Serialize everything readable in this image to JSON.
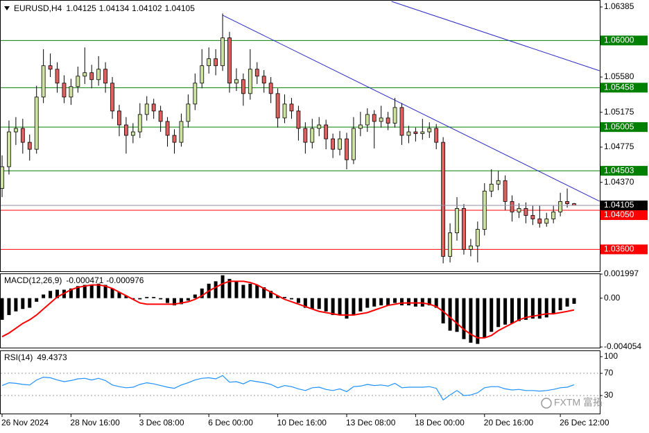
{
  "chart_data": [
    {
      "type": "candlestick",
      "symbol": "EURUSD,H4",
      "bull_color": "#cfe3a0",
      "bear_color": "#e06060",
      "candles": [
        [
          1.043,
          1.0468,
          1.042,
          1.0455
        ],
        [
          1.0455,
          1.0508,
          1.0446,
          1.0495
        ],
        [
          1.0495,
          1.0512,
          1.048,
          1.0499
        ],
        [
          1.0499,
          1.051,
          1.047,
          1.0483
        ],
        [
          1.0483,
          1.0492,
          1.0462,
          1.0475
        ],
        [
          1.0475,
          1.0548,
          1.047,
          1.0535
        ],
        [
          1.0535,
          1.059,
          1.0528,
          1.0571
        ],
        [
          1.0571,
          1.0585,
          1.0558,
          1.0567
        ],
        [
          1.0567,
          1.0575,
          1.054,
          1.0551
        ],
        [
          1.0551,
          1.056,
          1.0528,
          1.0535
        ],
        [
          1.0535,
          1.0556,
          1.0526,
          1.0547
        ],
        [
          1.0547,
          1.057,
          1.054,
          1.0559
        ],
        [
          1.0559,
          1.0592,
          1.055,
          1.0563
        ],
        [
          1.0563,
          1.0572,
          1.0545,
          1.0555
        ],
        [
          1.0555,
          1.0582,
          1.0548,
          1.0567
        ],
        [
          1.0567,
          1.0575,
          1.054,
          1.0551
        ],
        [
          1.0551,
          1.0558,
          1.051,
          1.0519
        ],
        [
          1.0519,
          1.0526,
          1.049,
          1.0503
        ],
        [
          1.0503,
          1.0512,
          1.047,
          1.0491
        ],
        [
          1.0491,
          1.0505,
          1.0482,
          1.0495
        ],
        [
          1.0495,
          1.0528,
          1.0488,
          1.0515
        ],
        [
          1.0515,
          1.0536,
          1.0508,
          1.0527
        ],
        [
          1.0527,
          1.0533,
          1.051,
          1.0519
        ],
        [
          1.0519,
          1.0525,
          1.0495,
          1.0507
        ],
        [
          1.0507,
          1.0512,
          1.0478,
          1.0491
        ],
        [
          1.0491,
          1.0498,
          1.047,
          1.0483
        ],
        [
          1.0483,
          1.0516,
          1.0478,
          1.0507
        ],
        [
          1.0507,
          1.0538,
          1.05,
          1.0527
        ],
        [
          1.0527,
          1.0562,
          1.052,
          1.0551
        ],
        [
          1.0551,
          1.059,
          1.0545,
          1.0571
        ],
        [
          1.0571,
          1.0592,
          1.0562,
          1.0579
        ],
        [
          1.0579,
          1.059,
          1.056,
          1.0571
        ],
        [
          1.0571,
          1.0631,
          1.0565,
          1.0603
        ],
        [
          1.0603,
          1.061,
          1.054,
          1.0551
        ],
        [
          1.0551,
          1.0568,
          1.0542,
          1.0555
        ],
        [
          1.0555,
          1.0562,
          1.0525,
          1.0539
        ],
        [
          1.0539,
          1.059,
          1.0532,
          1.0567
        ],
        [
          1.0567,
          1.0575,
          1.055,
          1.0559
        ],
        [
          1.0559,
          1.0566,
          1.054,
          1.0551
        ],
        [
          1.0551,
          1.0558,
          1.0528,
          1.0539
        ],
        [
          1.0539,
          1.0545,
          1.05,
          1.0511
        ],
        [
          1.0511,
          1.0538,
          1.0505,
          1.0527
        ],
        [
          1.0527,
          1.0534,
          1.051,
          1.0519
        ],
        [
          1.0519,
          1.0525,
          1.0485,
          1.0499
        ],
        [
          1.0499,
          1.0506,
          1.047,
          1.0483
        ],
        [
          1.0483,
          1.051,
          1.0476,
          1.0499
        ],
        [
          1.0499,
          1.0512,
          1.049,
          1.0503
        ],
        [
          1.0503,
          1.0509,
          1.0475,
          1.0487
        ],
        [
          1.0487,
          1.0493,
          1.0465,
          1.0475
        ],
        [
          1.0475,
          1.0496,
          1.0468,
          1.0487
        ],
        [
          1.0487,
          1.0494,
          1.0452,
          1.0463
        ],
        [
          1.0463,
          1.0512,
          1.0458,
          1.0499
        ],
        [
          1.0499,
          1.0518,
          1.049,
          1.0503
        ],
        [
          1.0503,
          1.0522,
          1.0495,
          1.0515
        ],
        [
          1.0515,
          1.052,
          1.0476,
          1.0507
        ],
        [
          1.0507,
          1.0525,
          1.05,
          1.0511
        ],
        [
          1.0511,
          1.0518,
          1.0497,
          1.0505
        ],
        [
          1.0505,
          1.0534,
          1.05,
          1.0523
        ],
        [
          1.0523,
          1.0528,
          1.048,
          1.0491
        ],
        [
          1.0491,
          1.0502,
          1.0482,
          1.0495
        ],
        [
          1.0495,
          1.05,
          1.0484,
          1.0493
        ],
        [
          1.0493,
          1.051,
          1.0486,
          1.0495
        ],
        [
          1.0495,
          1.0506,
          1.0488,
          1.0499
        ],
        [
          1.0499,
          1.0504,
          1.0475,
          1.0483
        ],
        [
          1.0483,
          1.0489,
          1.0344,
          1.0352
        ],
        [
          1.0352,
          1.039,
          1.0345,
          1.0379
        ],
        [
          1.0379,
          1.042,
          1.037,
          1.0407
        ],
        [
          1.0407,
          1.0412,
          1.0354,
          1.036
        ],
        [
          1.036,
          1.0372,
          1.0352,
          1.0364
        ],
        [
          1.0364,
          1.0392,
          1.0345,
          1.0383
        ],
        [
          1.0383,
          1.0436,
          1.0376,
          1.0427
        ],
        [
          1.0427,
          1.0452,
          1.042,
          1.0435
        ],
        [
          1.0435,
          1.045,
          1.0428,
          1.0439
        ],
        [
          1.0439,
          1.0445,
          1.0405,
          1.0415
        ],
        [
          1.0415,
          1.0422,
          1.0392,
          1.0403
        ],
        [
          1.0403,
          1.0413,
          1.0396,
          1.0407
        ],
        [
          1.0407,
          1.0414,
          1.039,
          1.0399
        ],
        [
          1.0399,
          1.041,
          1.0388,
          1.0395
        ],
        [
          1.0395,
          1.041,
          1.0385,
          1.039
        ],
        [
          1.039,
          1.0402,
          1.0386,
          1.0395
        ],
        [
          1.0395,
          1.041,
          1.039,
          1.0403
        ],
        [
          1.0403,
          1.0425,
          1.0398,
          1.0415
        ],
        [
          1.0415,
          1.043,
          1.0408,
          1.04125
        ],
        [
          1.04125,
          1.04134,
          1.04102,
          1.04105
        ]
      ],
      "categories": [
        "26 Nov 2024",
        null,
        null,
        null,
        null,
        null,
        null,
        null,
        null,
        null,
        "28 Nov 16:00",
        null,
        null,
        null,
        null,
        null,
        null,
        null,
        null,
        null,
        "3 Dec 08:00",
        null,
        null,
        null,
        null,
        null,
        null,
        null,
        null,
        null,
        "6 Dec 00:00",
        null,
        null,
        null,
        null,
        null,
        null,
        null,
        null,
        null,
        "10 Dec 16:00",
        null,
        null,
        null,
        null,
        null,
        null,
        null,
        null,
        null,
        "13 Dec 08:00",
        null,
        null,
        null,
        null,
        null,
        null,
        null,
        null,
        null,
        "18 Dec 00:00",
        null,
        null,
        null,
        null,
        null,
        null,
        null,
        null,
        null,
        "20 Dec 16:00",
        null,
        null,
        null,
        null,
        null,
        null,
        null,
        null,
        null,
        null,
        "26 Dec 12:00",
        null,
        null
      ],
      "ylim": [
        1.0334,
        1.06465
      ],
      "yticks": [
        1.06385,
        {
          "value": 1.0558,
          "label": "1.05580"
        },
        1.05175,
        1.04775,
        {
          "value": 1.0437,
          "label": "1.04370"
        }
      ],
      "levels": [
        {
          "value": 1.06,
          "label": "1.06000",
          "color": "#008000"
        },
        {
          "value": 1.05458,
          "label": "1.05458",
          "color": "#008000"
        },
        {
          "value": 1.05005,
          "label": "1.05005",
          "color": "#008000"
        },
        {
          "value": 1.04503,
          "label": "1.04503",
          "color": "#008000"
        },
        {
          "value": 1.0405,
          "label": "1.04050",
          "color": "#ff0000"
        },
        {
          "value": 1.036,
          "label": "1.03600",
          "color": "#ff0000"
        }
      ],
      "trendlines": [
        {
          "x": [
            56.5,
            86.7
          ],
          "y": [
            1.06449,
            1.05652
          ],
          "color": "#2828c8"
        },
        {
          "x": [
            32,
            86.7
          ],
          "y": [
            1.0629,
            1.04153
          ],
          "color": "#2828c8"
        }
      ]
    },
    {
      "type": "macd",
      "title": "MACD(12,26,9)",
      "series": [
        {
          "color": "#000000",
          "values": [
            -0.0018,
            -0.0014,
            -0.0011,
            -0.0009,
            -0.0008,
            -0.0003,
            0.0003,
            0.0006,
            0.0007,
            0.0007,
            0.0008,
            0.001,
            0.0011,
            0.0011,
            0.0012,
            0.0011,
            0.0008,
            0.0005,
            0.0002,
            -0.0001,
            -0.0001,
            0.0001,
            0.0001,
            -0.0001,
            -0.0004,
            -0.0006,
            -0.0005,
            -0.0002,
            0.0003,
            0.0008,
            0.0012,
            0.0014,
            0.0019,
            0.0016,
            0.0014,
            0.0011,
            0.0012,
            0.0011,
            0.0009,
            0.0006,
            0.0002,
            0.0001,
            -0.0001,
            -0.0004,
            -0.0008,
            -0.0009,
            -0.0009,
            -0.0011,
            -0.0014,
            -0.0014,
            -0.0017,
            -0.0014,
            -0.0011,
            -0.0008,
            -0.0007,
            -0.0006,
            -0.0006,
            -0.0004,
            -0.0006,
            -0.0006,
            -0.0007,
            -0.0007,
            -0.0006,
            -0.0008,
            -0.0021,
            -0.0027,
            -0.0028,
            -0.0034,
            -0.0037,
            -0.0038,
            -0.0033,
            -0.0028,
            -0.0024,
            -0.0022,
            -0.0021,
            -0.0019,
            -0.0018,
            -0.0017,
            -0.0017,
            -0.0016,
            -0.0013,
            -0.001,
            -0.0007,
            -0.000471
          ]
        },
        {
          "color": "#ff0000",
          "values": [
            -0.0032,
            -0.0029,
            -0.0025,
            -0.0021,
            -0.0018,
            -0.0014,
            -0.0009,
            -0.0004,
            0.0001,
            0.0004,
            0.0007,
            0.0009,
            0.001,
            0.0011,
            0.0011,
            0.001,
            0.0008,
            0.0005,
            0.0002,
            -0.0001,
            -0.0004,
            -0.0005,
            -0.0005,
            -0.0005,
            -0.0005,
            -0.0005,
            -0.0004,
            -0.0003,
            -0.0001,
            0.0002,
            0.0006,
            0.0009,
            0.0012,
            0.0014,
            0.0014,
            0.0014,
            0.0013,
            0.0011,
            0.0008,
            0.0005,
            0.0002,
            -0.0001,
            -0.0003,
            -0.0005,
            -0.0007,
            -0.0009,
            -0.0011,
            -0.0012,
            -0.0013,
            -0.0014,
            -0.0014,
            -0.0014,
            -0.0013,
            -0.0012,
            -0.001,
            -0.0008,
            -0.0006,
            -0.0005,
            -0.0004,
            -0.0004,
            -0.0004,
            -0.0004,
            -0.0005,
            -0.0007,
            -0.0011,
            -0.0016,
            -0.0021,
            -0.0026,
            -0.003,
            -0.0033,
            -0.0033,
            -0.0031,
            -0.0027,
            -0.0024,
            -0.0021,
            -0.0018,
            -0.0016,
            -0.0015,
            -0.0014,
            -0.0013,
            -0.0013,
            -0.0012,
            -0.0011,
            -0.000976
          ]
        }
      ],
      "ylim": [
        -0.004054,
        0.001997
      ],
      "yticks": [
        0.001997,
        {
          "value": 0,
          "label": "0.00"
        },
        -0.004054
      ]
    },
    {
      "type": "rsi",
      "title": "RSI(14)",
      "color": "#1e90ff",
      "values": [
        48,
        53,
        52,
        50,
        49,
        58,
        63,
        62,
        58,
        55,
        57,
        60,
        61,
        58,
        61,
        57,
        49,
        46,
        44,
        45,
        50,
        53,
        51,
        48,
        45,
        43,
        49,
        53,
        58,
        61,
        62,
        60,
        66,
        54,
        55,
        51,
        57,
        55,
        53,
        50,
        44,
        48,
        46,
        42,
        39,
        44,
        45,
        41,
        39,
        42,
        37,
        46,
        47,
        50,
        48,
        49,
        47,
        52,
        44,
        45,
        45,
        45,
        46,
        43,
        22,
        31,
        39,
        30,
        31,
        35,
        44,
        46,
        46,
        42,
        40,
        41,
        39,
        39,
        38,
        39,
        41,
        44,
        45,
        49.4373
      ],
      "ylim": [
        0,
        100
      ],
      "yticks": [
        100,
        70,
        30
      ]
    }
  ],
  "watermark": "FXTM 富拓"
}
